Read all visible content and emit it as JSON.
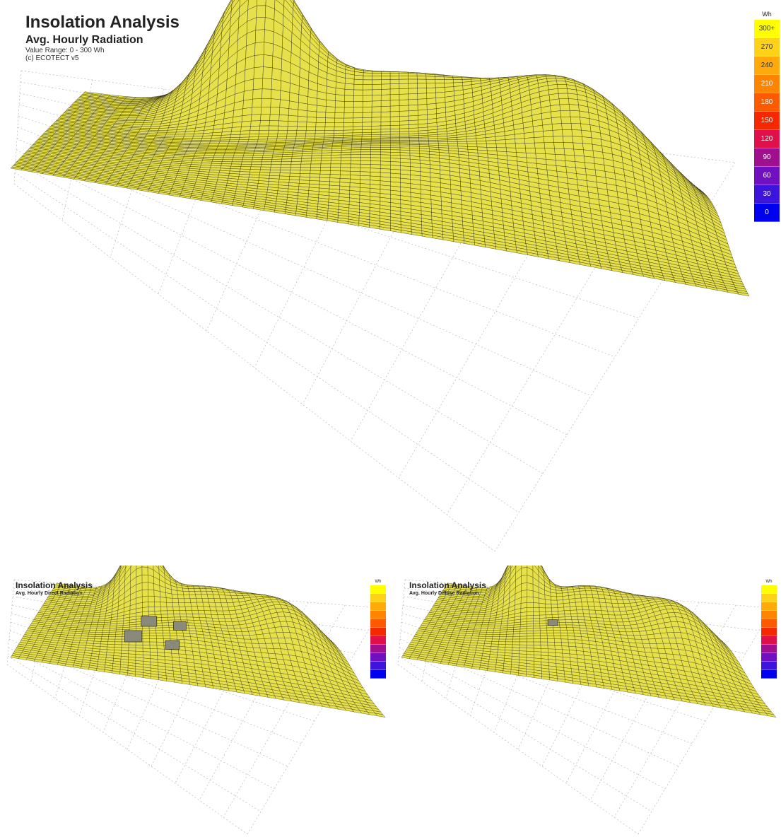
{
  "main_panel": {
    "title": "Insolation Analysis",
    "subtitle": "Avg. Hourly Radiation",
    "range": "Value Range: 0 - 300 Wh",
    "credit": "(c) ECOTECT v5"
  },
  "direct_panel": {
    "title": "Insolation Analysis",
    "subtitle": "Avg. Hourly Direct Radiation"
  },
  "diffuse_panel": {
    "title": "Insolation Analysis",
    "subtitle": "Avg. Hourly Diffuse Radiation"
  },
  "legend": {
    "unit": "Wh",
    "scale_min": 0,
    "scale_max": 300,
    "entries": [
      {
        "label": "300+",
        "color": "#ffff00",
        "text_color": "#333333"
      },
      {
        "label": "270",
        "color": "#ffd21a",
        "text_color": "#333333"
      },
      {
        "label": "240",
        "color": "#ffaa0a",
        "text_color": "#333333"
      },
      {
        "label": "210",
        "color": "#ff8400",
        "text_color": "#ffffff"
      },
      {
        "label": "180",
        "color": "#ff5a00",
        "text_color": "#ffffff"
      },
      {
        "label": "150",
        "color": "#f52800",
        "text_color": "#ffffff"
      },
      {
        "label": "120",
        "color": "#e0104a",
        "text_color": "#ffffff"
      },
      {
        "label": "90",
        "color": "#a0108e",
        "text_color": "#ffffff"
      },
      {
        "label": "60",
        "color": "#7010c0",
        "text_color": "#ffffff"
      },
      {
        "label": "30",
        "color": "#3c14dc",
        "text_color": "#ffffff"
      },
      {
        "label": "0",
        "color": "#0000f0",
        "text_color": "#ffffff"
      }
    ]
  },
  "colors": {
    "surface": "#e6e04a",
    "surface_dark": "#d2cc2a",
    "mesh_line": "#1a1a10",
    "grid_line": "#b8b8b8",
    "shadow_block": "#8a8a7a"
  }
}
